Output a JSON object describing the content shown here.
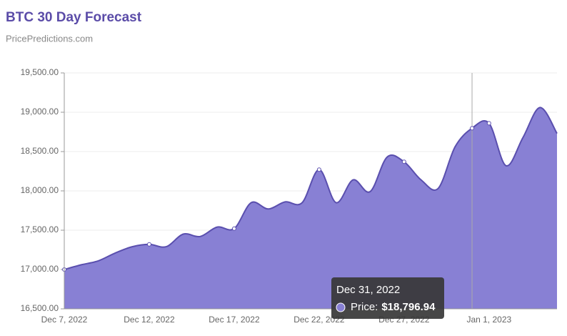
{
  "chart_data": {
    "type": "area",
    "title": "BTC 30 Day Forecast",
    "subtitle": "PricePredictions.com",
    "categories": [
      "Dec 7, 2022",
      null,
      null,
      null,
      null,
      "Dec 12, 2022",
      null,
      null,
      null,
      null,
      "Dec 17, 2022",
      null,
      null,
      null,
      null,
      "Dec 22, 2022",
      null,
      null,
      null,
      null,
      "Dec 27, 2022",
      null,
      null,
      null,
      null,
      "Jan 1, 2023",
      null,
      null,
      null,
      null
    ],
    "series": [
      {
        "name": "Price",
        "color": "#5a4fae",
        "fill": "#8880d4",
        "values": [
          17000,
          17060,
          17110,
          17210,
          17290,
          17320,
          17290,
          17450,
          17420,
          17540,
          17520,
          17850,
          17770,
          17860,
          17850,
          18270,
          17850,
          18140,
          17990,
          18430,
          18370,
          18140,
          18030,
          18560,
          18796.94,
          18860,
          18320,
          18680,
          19060,
          18730
        ]
      }
    ],
    "ylim": [
      16500,
      19500
    ],
    "yticks": [
      {
        "value": 16500,
        "label": "16,500.00"
      },
      {
        "value": 17000,
        "label": "17,000.00"
      },
      {
        "value": 17500,
        "label": "17,500.00"
      },
      {
        "value": 18000,
        "label": "18,000.00"
      },
      {
        "value": 18500,
        "label": "18,500.00"
      },
      {
        "value": 19000,
        "label": "19,000.00"
      },
      {
        "value": 19500,
        "label": "19,500.00"
      }
    ],
    "grid": true,
    "hover_index": 24,
    "tooltip": {
      "title": "Dec 31, 2022",
      "label": "Price:",
      "value": "$18,796.94"
    }
  }
}
